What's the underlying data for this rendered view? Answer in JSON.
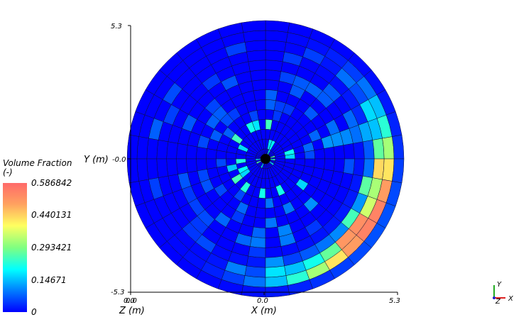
{
  "chart_data": {
    "type": "heatmap",
    "subtype": "polar-cell-contour",
    "x_axis": {
      "label": "X (m)",
      "ticks": [
        "0.0",
        "5.3"
      ],
      "range": [
        -5.3,
        5.3
      ]
    },
    "y_axis": {
      "label": "Y (m)",
      "ticks": [
        "5.3",
        "-0.0",
        "-5.3"
      ],
      "range": [
        -5.3,
        5.3
      ]
    },
    "z_axis": {
      "label": "Z (m)",
      "ticks": [
        "0.0"
      ]
    },
    "colorbar": {
      "title_line1": "Volume Fraction",
      "title_line2": "(-)",
      "min": 0,
      "max": 0.586842,
      "ticks": [
        "0.586842",
        "0.440131",
        "0.293421",
        "0.14671",
        "0"
      ],
      "colormap": [
        "#0000ff",
        "#0080ff",
        "#00ffff",
        "#80ff80",
        "#ffff60",
        "#ffa060",
        "#ff6a6a"
      ]
    },
    "grid": {
      "radial_rings": 14,
      "angular_sectors": 36
    },
    "description": "Volume fraction highest near outer rim on the right and lower-right side (angles ~ -75 to 15 degrees), low elsewhere",
    "triad": {
      "x": "X",
      "y": "Y",
      "z": "Z"
    }
  }
}
